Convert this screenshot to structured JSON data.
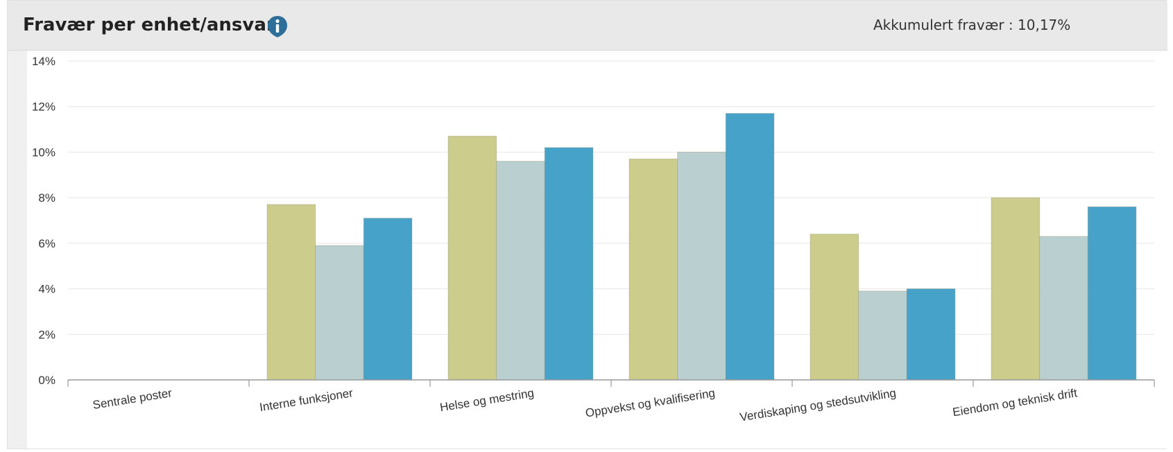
{
  "header": {
    "title": "Fravær per enhet/ansvar",
    "info_icon": "info-icon",
    "summary_label": "Akkumulert fravær : 10,17%"
  },
  "colors": {
    "series": [
      "#cccc8c",
      "#b9cfd0",
      "#47a2ca"
    ],
    "grid": "#e6e6e6",
    "axis": "#999999",
    "label": "#333333",
    "info_icon": "#2f6e99"
  },
  "chart_data": {
    "type": "bar",
    "categories": [
      "Sentrale poster",
      "Interne funksjoner",
      "Helse og mestring",
      "Oppvekst og kvalifisering",
      "Verdiskaping og stedsutvikling",
      "Eiendom og teknisk drift"
    ],
    "series": [
      {
        "values": [
          0,
          7.7,
          10.7,
          9.7,
          6.4,
          8.0
        ]
      },
      {
        "values": [
          0,
          5.9,
          9.6,
          10.0,
          3.9,
          6.3
        ]
      },
      {
        "values": [
          0,
          7.1,
          10.2,
          11.7,
          4.0,
          7.6
        ]
      }
    ],
    "yticks": [
      "0%",
      "2%",
      "4%",
      "6%",
      "8%",
      "10%",
      "12%",
      "14%"
    ],
    "ylim": [
      0,
      14
    ],
    "grid": true,
    "legend": "none",
    "title": "",
    "xlabel": "",
    "ylabel": ""
  }
}
